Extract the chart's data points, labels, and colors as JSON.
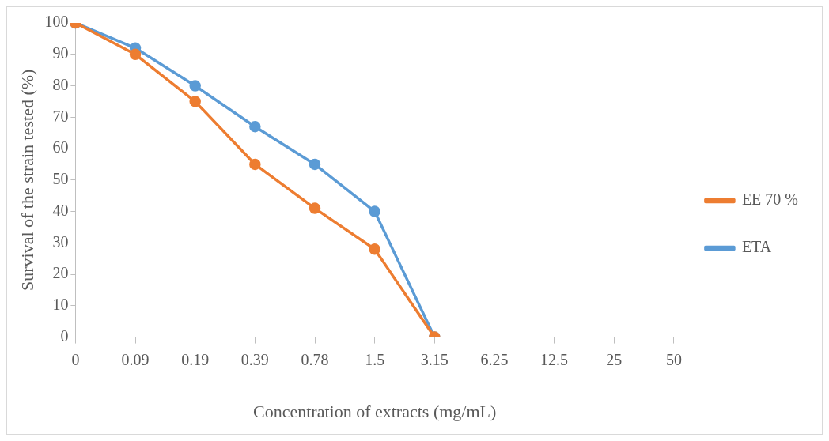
{
  "chart_data": {
    "type": "line",
    "xlabel": "Concentration of extracts (mg/mL)",
    "ylabel": "Survival of the strain tested (%)",
    "categories": [
      "0",
      "0.09",
      "0.19",
      "0.39",
      "0.78",
      "1.5",
      "3.15",
      "6.25",
      "12.5",
      "25",
      "50"
    ],
    "series": [
      {
        "name": "ETA",
        "color": "#5b9bd5",
        "values": [
          100,
          92,
          80,
          67,
          55,
          40,
          0,
          null,
          null,
          null,
          null
        ]
      },
      {
        "name": "EE 70 %",
        "color": "#ed7d31",
        "values": [
          100,
          90,
          75,
          55,
          41,
          28,
          0,
          null,
          null,
          null,
          null
        ]
      }
    ],
    "ylim": [
      0,
      100
    ],
    "yticks": [
      0,
      10,
      20,
      30,
      40,
      50,
      60,
      70,
      80,
      90,
      100
    ],
    "grid": false,
    "legend": "right",
    "marker": "circle",
    "line_style": "solid"
  }
}
